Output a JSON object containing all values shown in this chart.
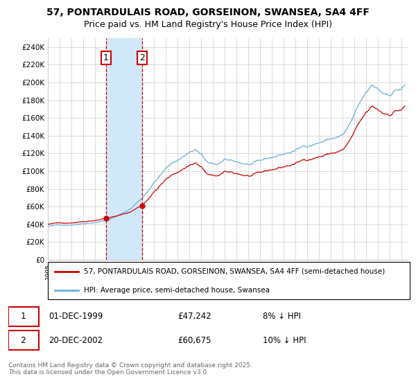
{
  "title": "57, PONTARDULAIS ROAD, GORSEINON, SWANSEA, SA4 4FF",
  "subtitle": "Price paid vs. HM Land Registry's House Price Index (HPI)",
  "ylim": [
    0,
    250000
  ],
  "yticks": [
    0,
    20000,
    40000,
    60000,
    80000,
    100000,
    120000,
    140000,
    160000,
    180000,
    200000,
    220000,
    240000
  ],
  "legend_line1": "57, PONTARDULAIS ROAD, GORSEINON, SWANSEA, SA4 4FF (semi-detached house)",
  "legend_line2": "HPI: Average price, semi-detached house, Swansea",
  "annotation1_date": "01-DEC-1999",
  "annotation1_price": "£47,242",
  "annotation1_hpi": "8% ↓ HPI",
  "annotation2_date": "20-DEC-2002",
  "annotation2_price": "£60,675",
  "annotation2_hpi": "10% ↓ HPI",
  "footer": "Contains HM Land Registry data © Crown copyright and database right 2025.\nThis data is licensed under the Open Government Licence v3.0.",
  "sale1_x": 1999.92,
  "sale1_y": 47242,
  "sale2_x": 2002.97,
  "sale2_y": 60675,
  "hpi_color": "#6baed6",
  "price_color": "#cc0000",
  "annotation_box_color": "#cc0000",
  "shaded_region_color": "#d0e8f8",
  "dashed_line_color": "#cc0000",
  "background_color": "#ffffff",
  "grid_color": "#cccccc",
  "xmin": 1995.0,
  "xmax": 2025.5
}
